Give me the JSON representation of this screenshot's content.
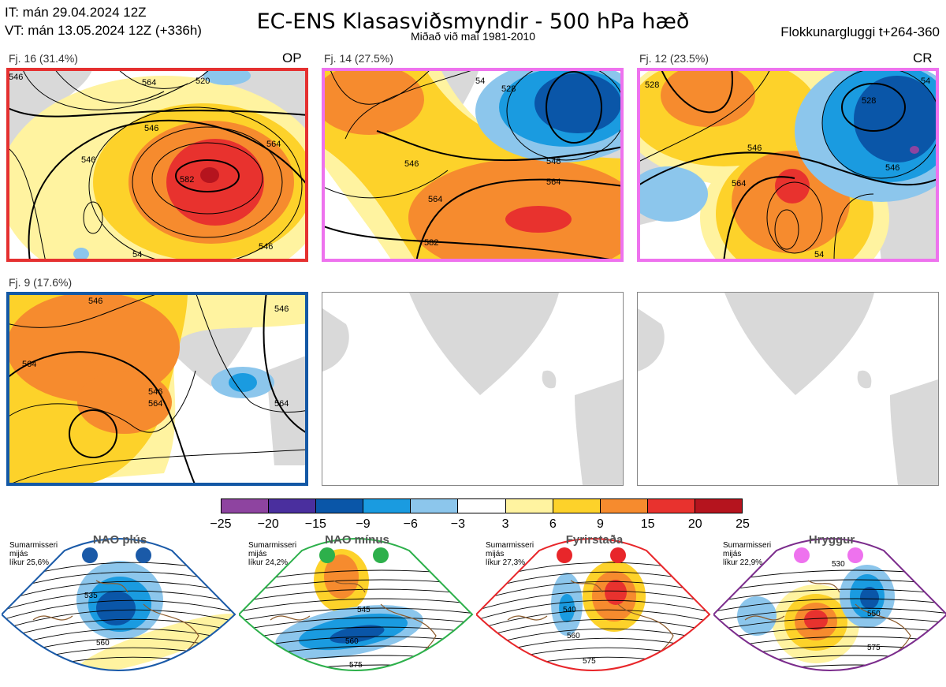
{
  "header": {
    "it_line": "IT: mán 29.04.2024 12Z",
    "vt_line": "VT: mán 13.05.2024 12Z  (+336h)",
    "title": "EC-ENS Klasasviðsmyndir - 500 hPa hæð",
    "subtitle": "Miðað við maí 1981-2010",
    "window": "Flokkunargluggi t+264-360"
  },
  "panels": [
    {
      "label": "Fj. 16 (31.4%)",
      "tag": "OP",
      "border": "#e53030",
      "contours": [
        "546",
        "564",
        "582",
        "520",
        "546",
        "564",
        "546",
        "546",
        "54"
      ]
    },
    {
      "label": "Fj. 14 (27.5%)",
      "tag": "",
      "border": "#ee72ee",
      "contours": [
        "528",
        "546",
        "546",
        "564",
        "564",
        "582",
        "54"
      ]
    },
    {
      "label": "Fj. 12 (23.5%)",
      "tag": "CR",
      "border": "#ee72ee",
      "contours": [
        "528",
        "546",
        "528",
        "546",
        "564",
        "54",
        "54"
      ]
    },
    {
      "label": "Fj. 9 (17.6%)",
      "tag": "",
      "border": "#1358a5",
      "contours": [
        "546",
        "564",
        "546",
        "564",
        "564",
        "546"
      ]
    }
  ],
  "colorbar": {
    "colors": [
      "#8e44a0",
      "#4a2f9e",
      "#0a56a8",
      "#1a9be0",
      "#8cc6ec",
      "#ffffff",
      "#fff3a0",
      "#fdd22a",
      "#f68b2e",
      "#e8322e",
      "#b5141e"
    ],
    "labels": [
      "−25",
      "−20",
      "−15",
      "−9",
      "−6",
      "−3",
      "3",
      "6",
      "9",
      "15",
      "20",
      "25"
    ]
  },
  "regimes": [
    {
      "name": "NAO plús",
      "season": "Sumarmisseri",
      "middle": "mijás",
      "likelihood": "líkur 25,6%",
      "dot_color": "#1a5aa8",
      "border": "#1a5aa8",
      "contours": [
        "535",
        "560"
      ]
    },
    {
      "name": "NAO mínus",
      "season": "Sumarmisseri",
      "middle": "mijás",
      "likelihood": "líkur 24,2%",
      "dot_color": "#2db04b",
      "border": "#2db04b",
      "contours": [
        "545",
        "560",
        "575"
      ]
    },
    {
      "name": "Fyrirstaða",
      "season": "Sumarmisseri",
      "middle": "mijás",
      "likelihood": "líkur 27,3%",
      "dot_color": "#e8262a",
      "border": "#e8262a",
      "contours": [
        "540",
        "560",
        "575"
      ]
    },
    {
      "name": "Hryggur",
      "season": "Sumarmisseri",
      "middle": "mijás",
      "likelihood": "líkur 22,9%",
      "dot_color": "#ee72ee",
      "border": "#7b2c8c",
      "contours": [
        "530",
        "550",
        "575"
      ]
    }
  ]
}
